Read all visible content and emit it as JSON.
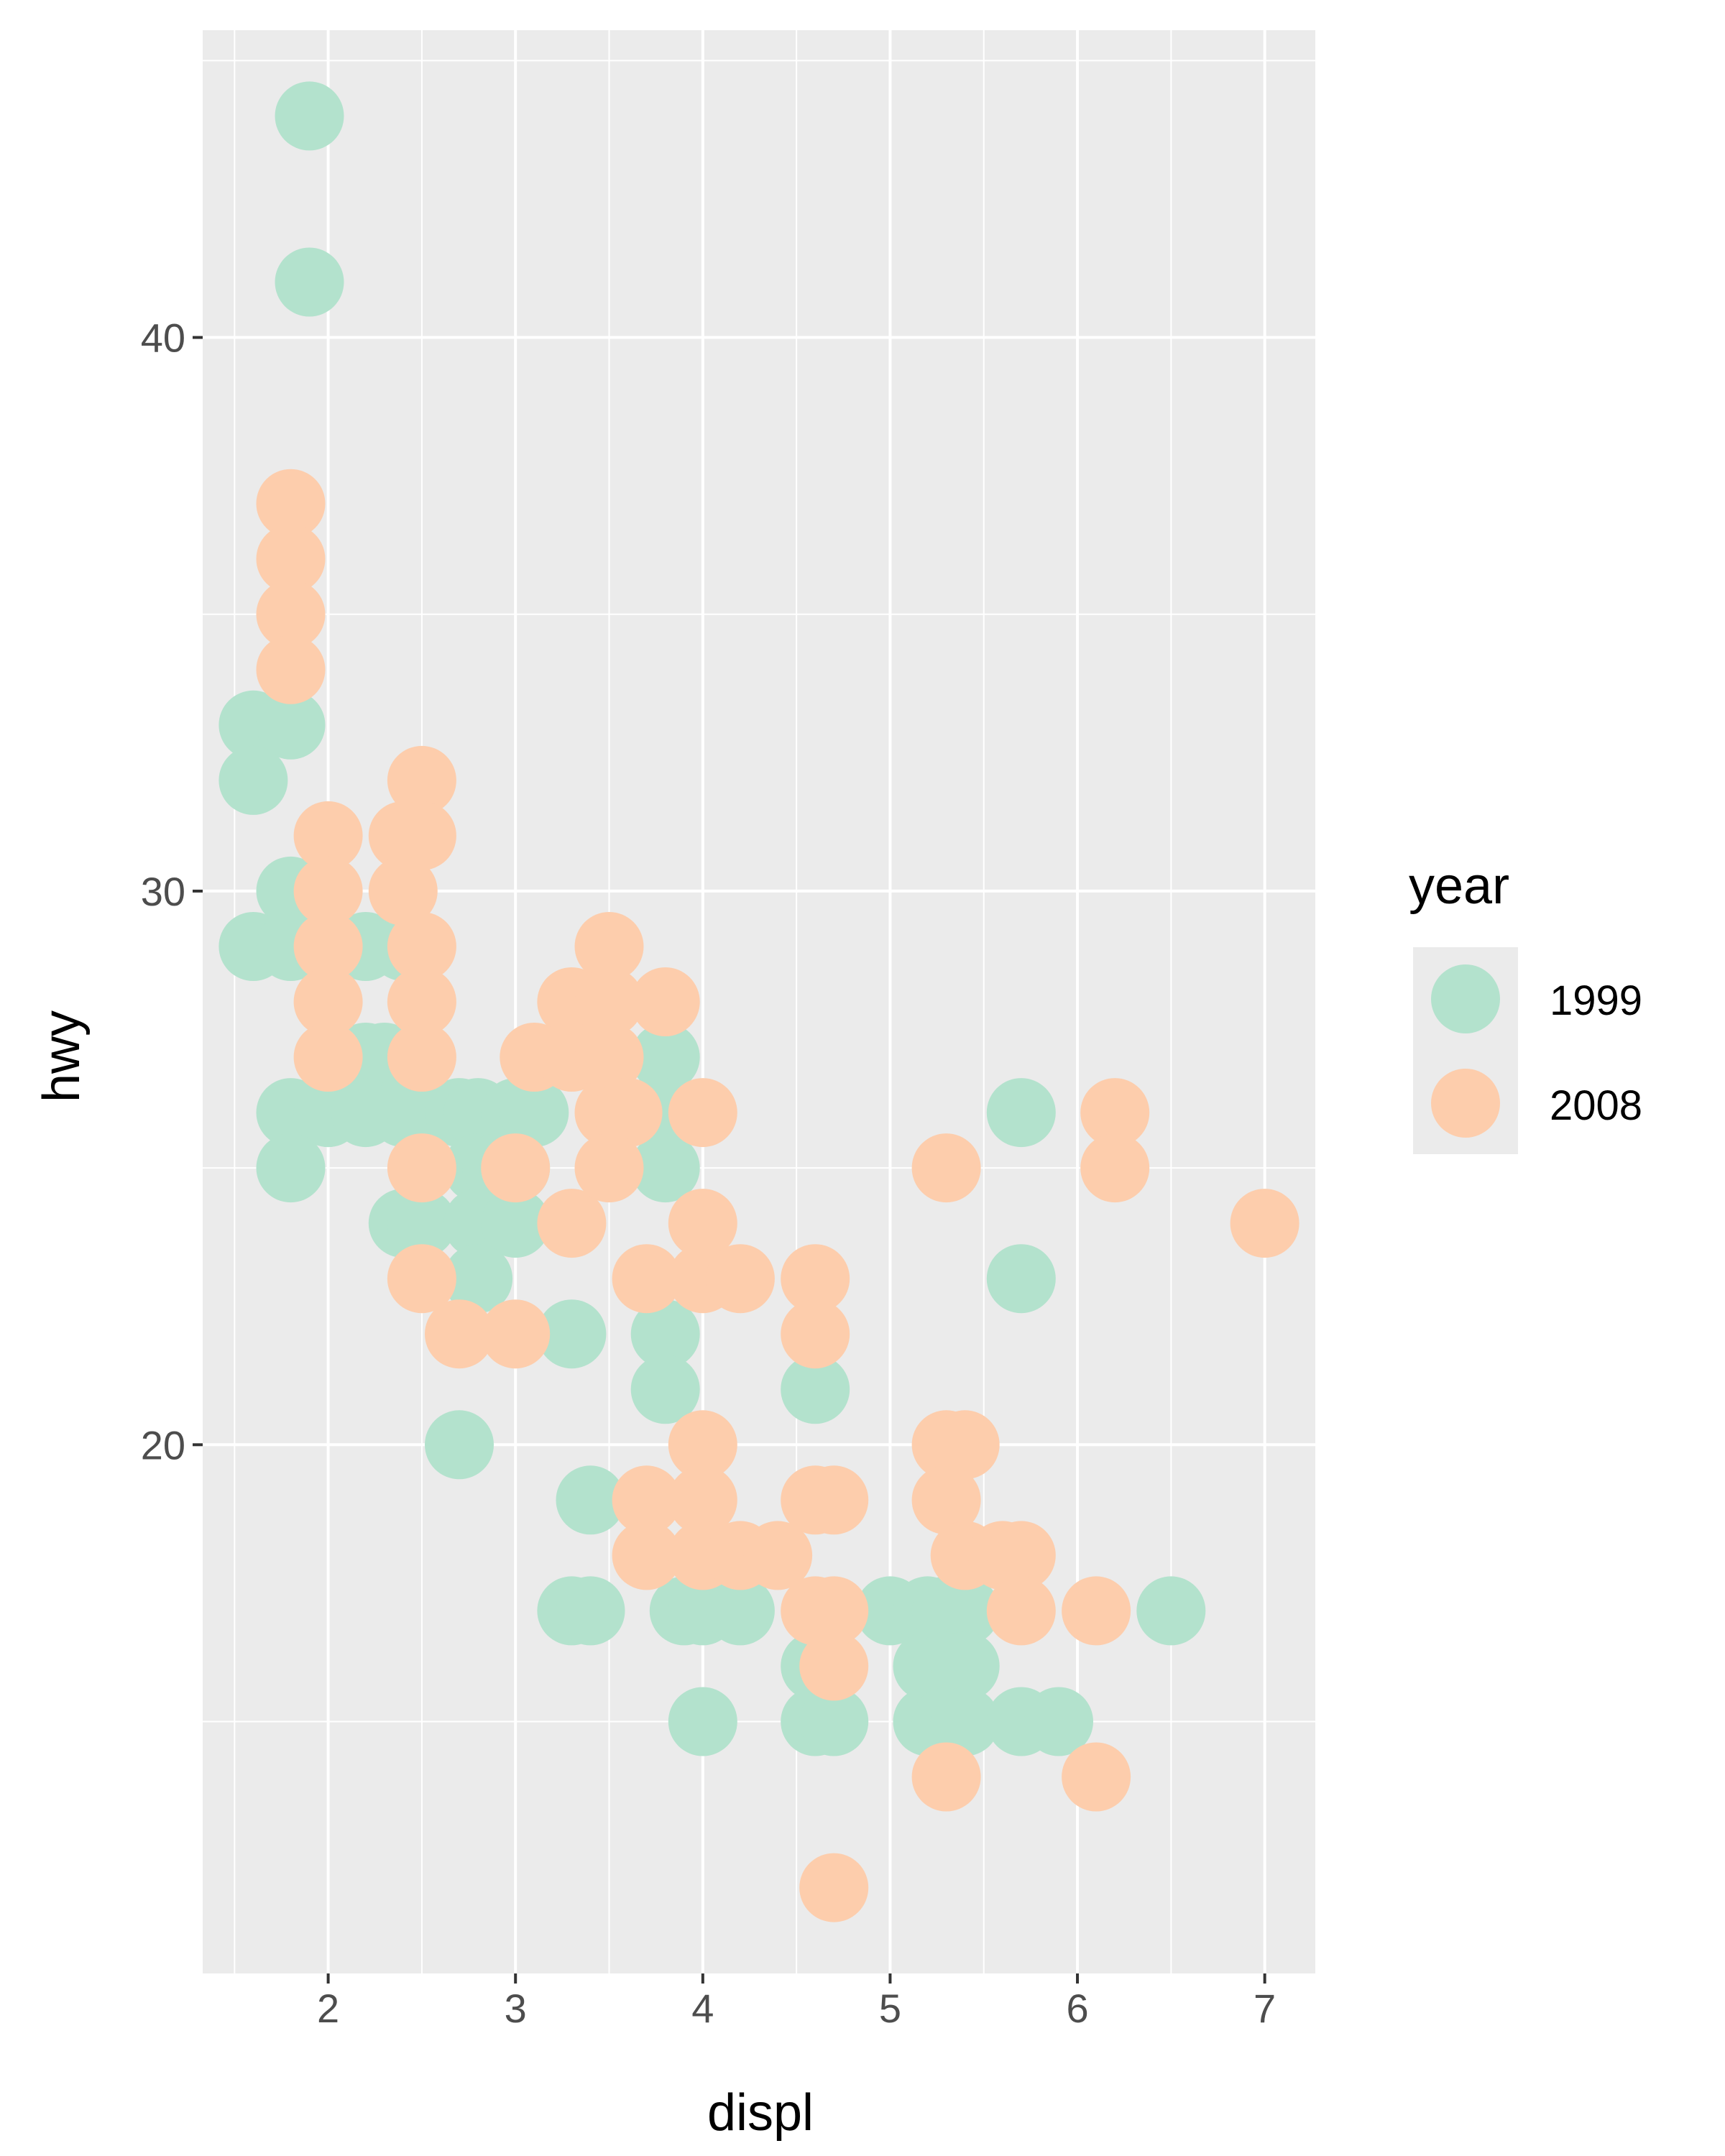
{
  "chart_data": {
    "type": "scatter",
    "xlabel": "displ",
    "ylabel": "hwy",
    "xlim": [
      1.33,
      7.27
    ],
    "ylim": [
      10.45,
      45.55
    ],
    "x_ticks": [
      2,
      3,
      4,
      5,
      6,
      7
    ],
    "y_ticks": [
      20,
      30,
      40
    ],
    "grid": true,
    "legend": {
      "title": "year",
      "position": "right"
    },
    "series": [
      {
        "name": "1999",
        "color": "#b3e2cd",
        "points": [
          [
            1.9,
            44
          ],
          [
            1.9,
            41
          ],
          [
            1.6,
            33
          ],
          [
            1.8,
            33
          ],
          [
            1.6,
            32
          ],
          [
            1.8,
            30
          ],
          [
            1.6,
            29
          ],
          [
            1.8,
            29
          ],
          [
            2.2,
            29
          ],
          [
            2.4,
            29
          ],
          [
            2.2,
            27
          ],
          [
            2.3,
            27
          ],
          [
            2.0,
            26
          ],
          [
            1.8,
            26
          ],
          [
            2.0,
            26
          ],
          [
            2.2,
            26
          ],
          [
            2.4,
            26
          ],
          [
            2.5,
            26
          ],
          [
            2.7,
            26
          ],
          [
            2.8,
            26
          ],
          [
            3.0,
            26
          ],
          [
            3.1,
            26
          ],
          [
            2.8,
            25
          ],
          [
            2.9,
            25
          ],
          [
            3.0,
            25
          ],
          [
            1.8,
            25
          ],
          [
            2.4,
            24
          ],
          [
            2.5,
            24
          ],
          [
            2.8,
            24
          ],
          [
            3.0,
            24
          ],
          [
            2.8,
            23
          ],
          [
            3.3,
            22
          ],
          [
            3.8,
            27
          ],
          [
            3.8,
            26
          ],
          [
            3.8,
            25
          ],
          [
            3.8,
            22
          ],
          [
            3.8,
            21
          ],
          [
            2.7,
            20
          ],
          [
            3.4,
            19
          ],
          [
            3.3,
            17
          ],
          [
            3.4,
            17
          ],
          [
            3.9,
            17
          ],
          [
            4.0,
            17
          ],
          [
            4.2,
            17
          ],
          [
            4.0,
            15
          ],
          [
            4.6,
            21
          ],
          [
            4.6,
            16
          ],
          [
            4.6,
            15
          ],
          [
            4.7,
            15
          ],
          [
            5.0,
            17
          ],
          [
            5.2,
            17
          ],
          [
            5.3,
            17
          ],
          [
            5.4,
            17
          ],
          [
            5.2,
            16
          ],
          [
            5.3,
            16
          ],
          [
            5.4,
            16
          ],
          [
            5.2,
            15
          ],
          [
            5.3,
            15
          ],
          [
            5.4,
            15
          ],
          [
            5.7,
            26
          ],
          [
            5.7,
            23
          ],
          [
            5.7,
            15
          ],
          [
            5.9,
            15
          ],
          [
            6.5,
            17
          ]
        ]
      },
      {
        "name": "2008",
        "color": "#fdcdac",
        "points": [
          [
            1.8,
            37
          ],
          [
            1.8,
            36
          ],
          [
            1.8,
            35
          ],
          [
            1.8,
            34
          ],
          [
            2.5,
            32
          ],
          [
            2.0,
            31
          ],
          [
            2.4,
            31
          ],
          [
            2.5,
            31
          ],
          [
            2.0,
            30
          ],
          [
            2.4,
            30
          ],
          [
            2.0,
            29
          ],
          [
            2.5,
            29
          ],
          [
            2.0,
            28
          ],
          [
            2.5,
            28
          ],
          [
            2.0,
            27
          ],
          [
            2.5,
            27
          ],
          [
            2.5,
            25
          ],
          [
            2.5,
            23
          ],
          [
            2.7,
            22
          ],
          [
            3.0,
            22
          ],
          [
            3.0,
            25
          ],
          [
            3.3,
            24
          ],
          [
            3.5,
            29
          ],
          [
            3.3,
            28
          ],
          [
            3.5,
            28
          ],
          [
            3.8,
            28
          ],
          [
            3.1,
            27
          ],
          [
            3.3,
            27
          ],
          [
            3.5,
            27
          ],
          [
            3.5,
            26
          ],
          [
            3.6,
            26
          ],
          [
            4.0,
            26
          ],
          [
            3.5,
            25
          ],
          [
            4.0,
            24
          ],
          [
            3.7,
            23
          ],
          [
            4.0,
            23
          ],
          [
            4.2,
            23
          ],
          [
            4.0,
            20
          ],
          [
            3.7,
            19
          ],
          [
            4.0,
            19
          ],
          [
            3.7,
            18
          ],
          [
            4.0,
            18
          ],
          [
            4.2,
            18
          ],
          [
            4.4,
            18
          ],
          [
            4.6,
            23
          ],
          [
            4.6,
            22
          ],
          [
            4.6,
            19
          ],
          [
            4.7,
            19
          ],
          [
            4.6,
            17
          ],
          [
            4.7,
            17
          ],
          [
            4.7,
            16
          ],
          [
            4.7,
            12
          ],
          [
            5.3,
            25
          ],
          [
            5.3,
            20
          ],
          [
            5.4,
            20
          ],
          [
            5.3,
            19
          ],
          [
            5.4,
            18
          ],
          [
            5.6,
            18
          ],
          [
            5.7,
            18
          ],
          [
            5.7,
            17
          ],
          [
            6.1,
            17
          ],
          [
            5.3,
            14
          ],
          [
            6.1,
            14
          ],
          [
            6.2,
            26
          ],
          [
            6.2,
            25
          ],
          [
            7.0,
            24
          ]
        ]
      }
    ]
  }
}
